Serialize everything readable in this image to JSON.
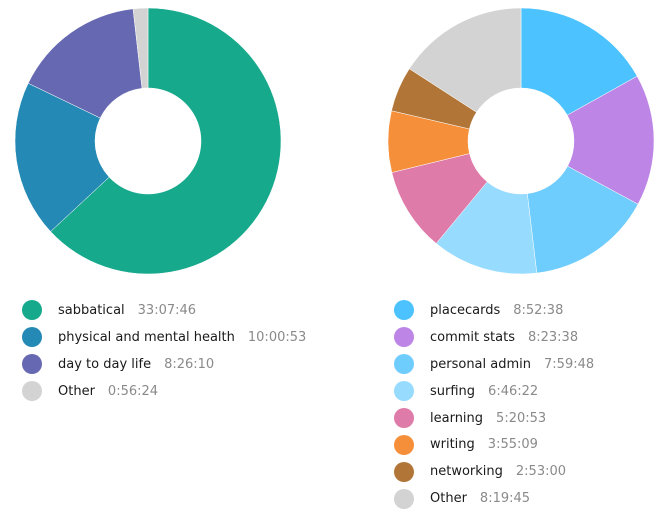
{
  "chart_data": [
    {
      "type": "pie",
      "variant": "donut",
      "title": "",
      "categories": [
        "sabbatical",
        "physical and mental health",
        "day to day life",
        "Other"
      ],
      "values_display": [
        "33:07:46",
        "10:00:53",
        "8:26:10",
        "0:56:24"
      ],
      "values_seconds": [
        119266,
        36053,
        30370,
        3384
      ],
      "colors": [
        "#16a98c",
        "#2589b5",
        "#6669b1",
        "#d3d3d3"
      ],
      "legend_position": "bottom"
    },
    {
      "type": "pie",
      "variant": "donut",
      "title": "",
      "categories": [
        "placecards",
        "commit stats",
        "personal admin",
        "surfing",
        "learning",
        "writing",
        "networking",
        "Other"
      ],
      "values_display": [
        "8:52:38",
        "8:23:38",
        "7:59:48",
        "6:46:22",
        "5:20:53",
        "3:55:09",
        "2:53:00",
        "8:19:45"
      ],
      "values_seconds": [
        31958,
        30218,
        28788,
        24382,
        19253,
        14109,
        10380,
        29985
      ],
      "colors": [
        "#4cc3fe",
        "#bd86e6",
        "#6fcdfe",
        "#97dbfe",
        "#de7ba8",
        "#f68f3a",
        "#b17637",
        "#d3d3d3"
      ],
      "legend_position": "bottom"
    }
  ],
  "left": {
    "legend": [
      {
        "label": "sabbatical",
        "value": "33:07:46",
        "color": "#16a98c"
      },
      {
        "label": "physical and mental health",
        "value": "10:00:53",
        "color": "#2589b5"
      },
      {
        "label": "day to day life",
        "value": "8:26:10",
        "color": "#6669b1"
      },
      {
        "label": "Other",
        "value": "0:56:24",
        "color": "#d3d3d3"
      }
    ]
  },
  "right": {
    "legend": [
      {
        "label": "placecards",
        "value": "8:52:38",
        "color": "#4cc3fe"
      },
      {
        "label": "commit stats",
        "value": "8:23:38",
        "color": "#bd86e6"
      },
      {
        "label": "personal admin",
        "value": "7:59:48",
        "color": "#6fcdfe"
      },
      {
        "label": "surfing",
        "value": "6:46:22",
        "color": "#97dbfe"
      },
      {
        "label": "learning",
        "value": "5:20:53",
        "color": "#de7ba8"
      },
      {
        "label": "writing",
        "value": "3:55:09",
        "color": "#f68f3a"
      },
      {
        "label": "networking",
        "value": "2:53:00",
        "color": "#b17637"
      },
      {
        "label": "Other",
        "value": "8:19:45",
        "color": "#d3d3d3"
      }
    ]
  }
}
